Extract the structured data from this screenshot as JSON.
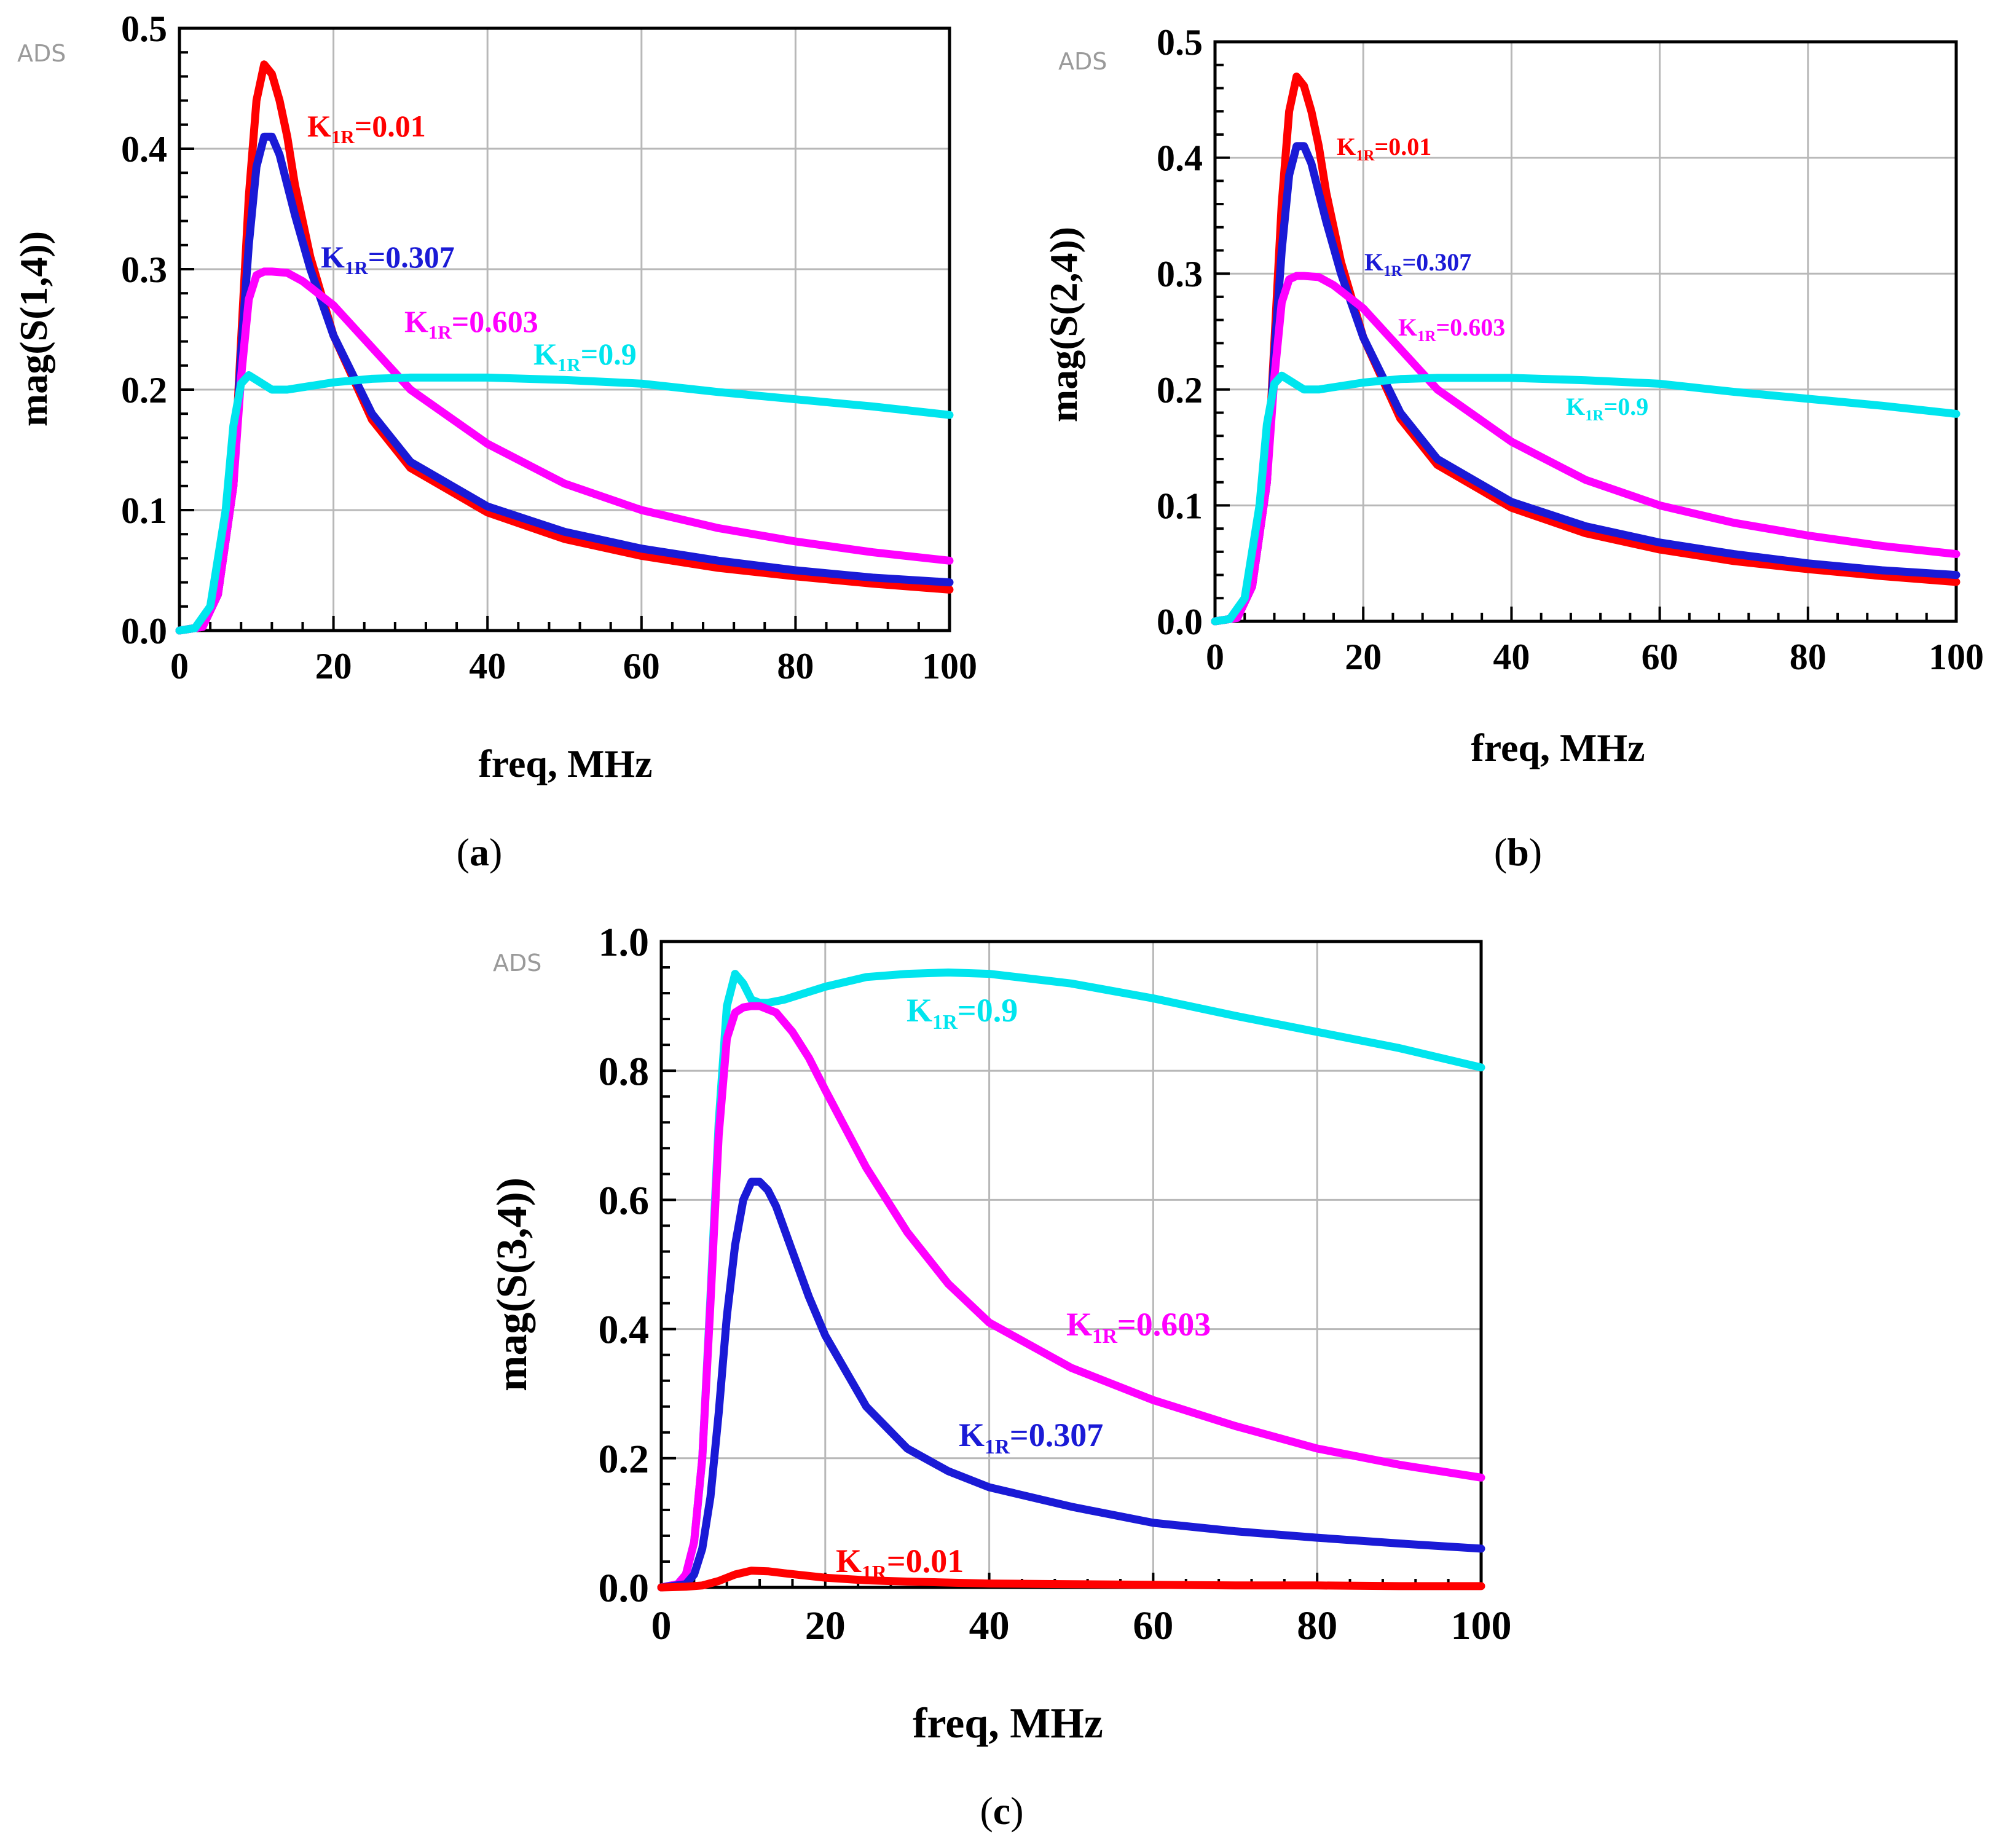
{
  "colors": {
    "k001": "#ff0000",
    "k0307": "#1a1ad6",
    "k0603": "#ff00ff",
    "k09": "#00e5ee",
    "grid": "#b8b8b8"
  },
  "chart_data": [
    {
      "id": "a",
      "type": "line",
      "caption_letter": "a",
      "watermark": "ADS",
      "xlabel": "freq, MHz",
      "ylabel": "mag(S(1,4))",
      "xlim": [
        0,
        100
      ],
      "ylim": [
        0,
        0.5
      ],
      "xticks": [
        0,
        20,
        40,
        60,
        80,
        100
      ],
      "yticks": [
        0.0,
        0.1,
        0.2,
        0.3,
        0.4,
        0.5
      ],
      "ytick_labels": [
        "0.0",
        "0.1",
        "0.2",
        "0.3",
        "0.4",
        "0.5"
      ],
      "series": [
        {
          "key": "k001",
          "label_k": "K",
          "label_sub": "1R",
          "label_val": "=0.01",
          "x": [
            0,
            3,
            5,
            7,
            8,
            9,
            10,
            11,
            12,
            13,
            14,
            15,
            17,
            20,
            25,
            30,
            40,
            50,
            60,
            70,
            80,
            90,
            100
          ],
          "y": [
            0,
            0.003,
            0.03,
            0.12,
            0.24,
            0.36,
            0.44,
            0.47,
            0.462,
            0.44,
            0.41,
            0.37,
            0.31,
            0.245,
            0.175,
            0.135,
            0.098,
            0.076,
            0.062,
            0.052,
            0.045,
            0.039,
            0.034
          ]
        },
        {
          "key": "k0307",
          "label_k": "K",
          "label_sub": "1R",
          "label_val": "=0.307",
          "x": [
            0,
            3,
            5,
            7,
            8,
            9,
            10,
            11,
            12,
            13,
            14,
            15,
            17,
            20,
            25,
            30,
            40,
            50,
            60,
            70,
            80,
            90,
            100
          ],
          "y": [
            0,
            0.003,
            0.03,
            0.12,
            0.23,
            0.32,
            0.385,
            0.41,
            0.41,
            0.395,
            0.37,
            0.345,
            0.3,
            0.245,
            0.18,
            0.14,
            0.103,
            0.082,
            0.068,
            0.058,
            0.05,
            0.044,
            0.04
          ]
        },
        {
          "key": "k0603",
          "label_k": "K",
          "label_sub": "1R",
          "label_val": "=0.603",
          "x": [
            0,
            3,
            5,
            7,
            8,
            9,
            10,
            11,
            12,
            14,
            16,
            18,
            20,
            25,
            30,
            40,
            50,
            60,
            70,
            80,
            90,
            100
          ],
          "y": [
            0,
            0.003,
            0.03,
            0.12,
            0.21,
            0.275,
            0.295,
            0.298,
            0.298,
            0.297,
            0.29,
            0.28,
            0.27,
            0.235,
            0.2,
            0.155,
            0.122,
            0.1,
            0.085,
            0.074,
            0.065,
            0.058
          ]
        },
        {
          "key": "k09",
          "label_k": "K",
          "label_sub": "1R",
          "label_val": "=0.9",
          "x": [
            0,
            2,
            4,
            6,
            7,
            8,
            9,
            10,
            12,
            14,
            16,
            20,
            25,
            30,
            40,
            50,
            60,
            70,
            80,
            90,
            100
          ],
          "y": [
            0,
            0.002,
            0.02,
            0.1,
            0.17,
            0.205,
            0.212,
            0.208,
            0.2,
            0.2,
            0.202,
            0.206,
            0.209,
            0.21,
            0.21,
            0.208,
            0.205,
            0.198,
            0.192,
            0.186,
            0.179
          ]
        }
      ]
    },
    {
      "id": "b",
      "type": "line",
      "caption_letter": "b",
      "watermark": "ADS",
      "xlabel": "freq, MHz",
      "ylabel": "mag(S(2,4))",
      "xlim": [
        0,
        100
      ],
      "ylim": [
        0,
        0.5
      ],
      "xticks": [
        0,
        20,
        40,
        60,
        80,
        100
      ],
      "yticks": [
        0.0,
        0.1,
        0.2,
        0.3,
        0.4,
        0.5
      ],
      "ytick_labels": [
        "0.0",
        "0.1",
        "0.2",
        "0.3",
        "0.4",
        "0.5"
      ],
      "series": [
        {
          "key": "k001",
          "label_k": "K",
          "label_sub": "1R",
          "label_val": "=0.01",
          "x": [
            0,
            3,
            5,
            7,
            8,
            9,
            10,
            11,
            12,
            13,
            14,
            15,
            17,
            20,
            25,
            30,
            40,
            50,
            60,
            70,
            80,
            90,
            100
          ],
          "y": [
            0,
            0.003,
            0.03,
            0.12,
            0.24,
            0.36,
            0.44,
            0.47,
            0.462,
            0.44,
            0.41,
            0.37,
            0.31,
            0.245,
            0.175,
            0.135,
            0.098,
            0.076,
            0.062,
            0.052,
            0.045,
            0.039,
            0.034
          ]
        },
        {
          "key": "k0307",
          "label_k": "K",
          "label_sub": "1R",
          "label_val": "=0.307",
          "x": [
            0,
            3,
            5,
            7,
            8,
            9,
            10,
            11,
            12,
            13,
            14,
            15,
            17,
            20,
            25,
            30,
            40,
            50,
            60,
            70,
            80,
            90,
            100
          ],
          "y": [
            0,
            0.003,
            0.03,
            0.12,
            0.23,
            0.32,
            0.385,
            0.41,
            0.41,
            0.395,
            0.37,
            0.345,
            0.3,
            0.245,
            0.18,
            0.14,
            0.103,
            0.082,
            0.068,
            0.058,
            0.05,
            0.044,
            0.04
          ]
        },
        {
          "key": "k0603",
          "label_k": "K",
          "label_sub": "1R",
          "label_val": "=0.603",
          "x": [
            0,
            3,
            5,
            7,
            8,
            9,
            10,
            11,
            12,
            14,
            16,
            18,
            20,
            25,
            30,
            40,
            50,
            60,
            70,
            80,
            90,
            100
          ],
          "y": [
            0,
            0.003,
            0.03,
            0.12,
            0.21,
            0.275,
            0.295,
            0.298,
            0.298,
            0.297,
            0.29,
            0.28,
            0.27,
            0.235,
            0.2,
            0.155,
            0.122,
            0.1,
            0.085,
            0.074,
            0.065,
            0.058
          ]
        },
        {
          "key": "k09",
          "label_k": "K",
          "label_sub": "1R",
          "label_val": "=0.9",
          "x": [
            0,
            2,
            4,
            6,
            7,
            8,
            9,
            10,
            12,
            14,
            16,
            20,
            25,
            30,
            40,
            50,
            60,
            70,
            80,
            90,
            100
          ],
          "y": [
            0,
            0.002,
            0.02,
            0.1,
            0.17,
            0.205,
            0.212,
            0.208,
            0.2,
            0.2,
            0.202,
            0.206,
            0.209,
            0.21,
            0.21,
            0.208,
            0.205,
            0.198,
            0.192,
            0.186,
            0.179
          ]
        }
      ]
    },
    {
      "id": "c",
      "type": "line",
      "caption_letter": "c",
      "watermark": "ADS",
      "xlabel": "freq, MHz",
      "ylabel": "mag(S(3,4))",
      "xlim": [
        0,
        100
      ],
      "ylim": [
        0,
        1.0
      ],
      "xticks": [
        0,
        20,
        40,
        60,
        80,
        100
      ],
      "yticks": [
        0.0,
        0.2,
        0.4,
        0.6,
        0.8,
        1.0
      ],
      "ytick_labels": [
        "0.0",
        "0.2",
        "0.4",
        "0.6",
        "0.8",
        "1.0"
      ],
      "series": [
        {
          "key": "k09",
          "label_k": "K",
          "label_sub": "1R",
          "label_val": "=0.9",
          "x": [
            0,
            2,
            3,
            4,
            5,
            6,
            7,
            8,
            9,
            10,
            11,
            12,
            13,
            15,
            20,
            25,
            30,
            35,
            40,
            50,
            60,
            70,
            80,
            90,
            100
          ],
          "y": [
            0,
            0.005,
            0.02,
            0.07,
            0.2,
            0.45,
            0.72,
            0.9,
            0.95,
            0.935,
            0.91,
            0.905,
            0.905,
            0.91,
            0.93,
            0.945,
            0.95,
            0.952,
            0.95,
            0.935,
            0.912,
            0.885,
            0.86,
            0.835,
            0.805
          ]
        },
        {
          "key": "k0603",
          "label_k": "K",
          "label_sub": "1R",
          "label_val": "=0.603",
          "x": [
            0,
            2,
            3,
            4,
            5,
            6,
            7,
            8,
            9,
            10,
            11,
            12,
            14,
            16,
            18,
            20,
            25,
            30,
            35,
            40,
            50,
            60,
            70,
            80,
            90,
            100
          ],
          "y": [
            0,
            0.005,
            0.02,
            0.07,
            0.2,
            0.44,
            0.7,
            0.85,
            0.89,
            0.898,
            0.9,
            0.9,
            0.89,
            0.86,
            0.82,
            0.77,
            0.65,
            0.55,
            0.47,
            0.41,
            0.34,
            0.29,
            0.25,
            0.215,
            0.19,
            0.17
          ]
        },
        {
          "key": "k0307",
          "label_k": "K",
          "label_sub": "1R",
          "label_val": "=0.307",
          "x": [
            0,
            3,
            4,
            5,
            6,
            7,
            8,
            9,
            10,
            11,
            12,
            13,
            14,
            16,
            18,
            20,
            25,
            30,
            35,
            40,
            50,
            60,
            70,
            80,
            90,
            100
          ],
          "y": [
            0,
            0.005,
            0.02,
            0.06,
            0.14,
            0.27,
            0.42,
            0.53,
            0.6,
            0.628,
            0.628,
            0.615,
            0.59,
            0.52,
            0.45,
            0.39,
            0.28,
            0.215,
            0.18,
            0.155,
            0.125,
            0.1,
            0.087,
            0.077,
            0.068,
            0.06
          ]
        },
        {
          "key": "k001",
          "label_k": "K",
          "label_sub": "1R",
          "label_val": "=0.01",
          "x": [
            0,
            3,
            5,
            7,
            9,
            11,
            13,
            15,
            20,
            25,
            30,
            40,
            50,
            60,
            70,
            80,
            90,
            100
          ],
          "y": [
            0,
            0.001,
            0.003,
            0.01,
            0.02,
            0.026,
            0.025,
            0.022,
            0.015,
            0.011,
            0.009,
            0.006,
            0.005,
            0.004,
            0.003,
            0.003,
            0.002,
            0.002
          ]
        }
      ]
    }
  ]
}
